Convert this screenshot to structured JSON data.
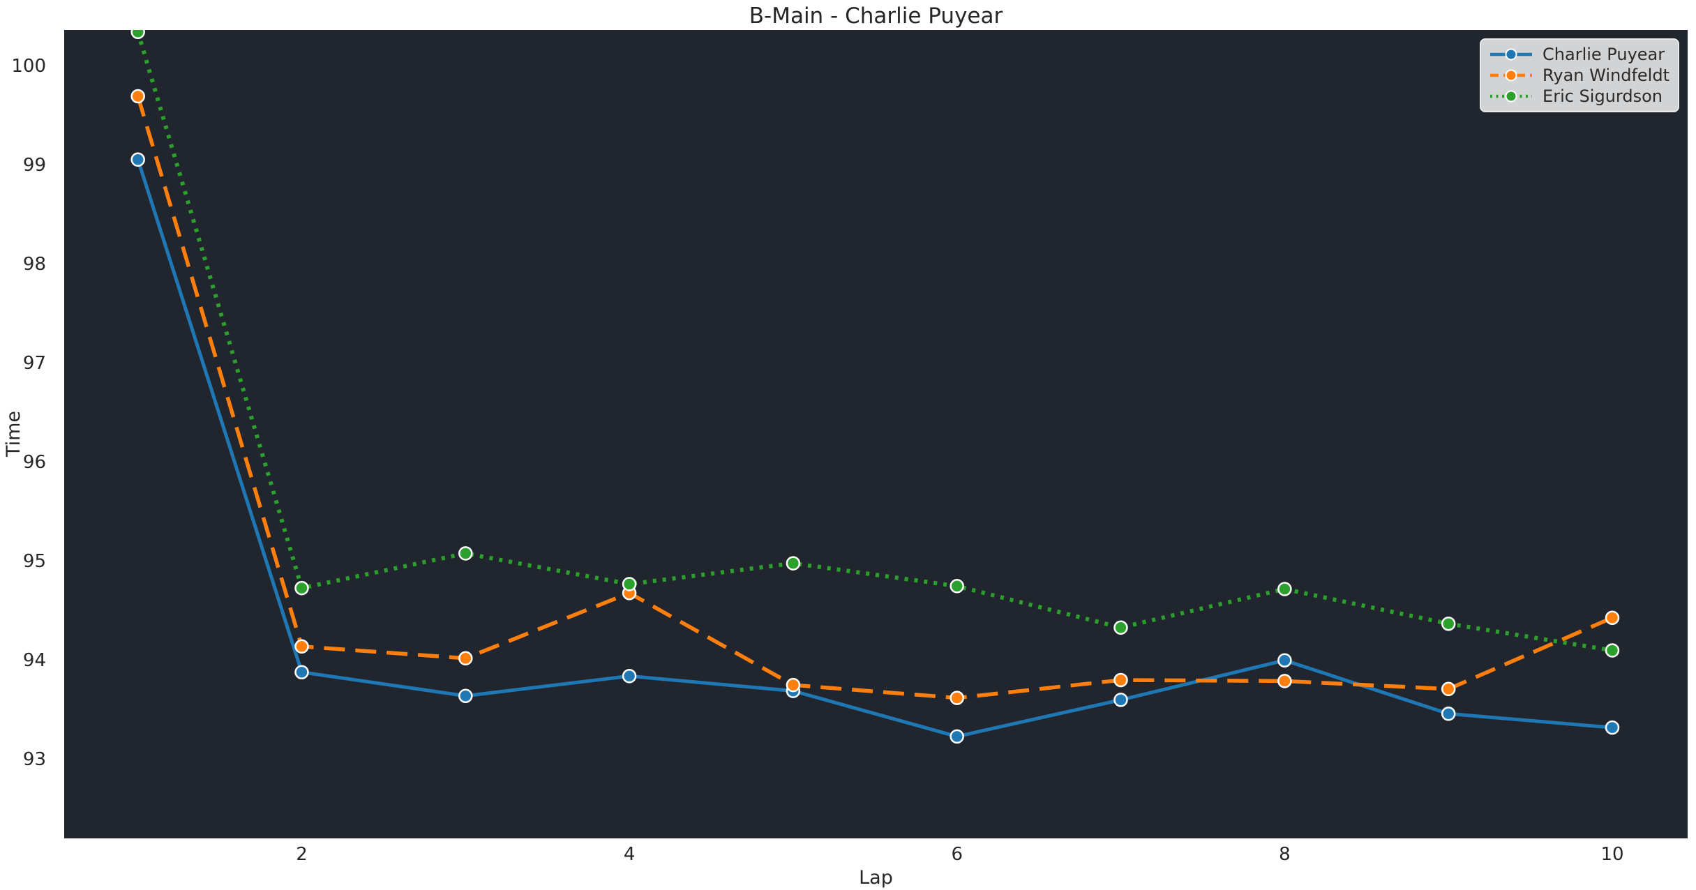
{
  "title": "B-Main - Charlie Puyear",
  "axes": {
    "xlabel": "Lap",
    "ylabel": "Time"
  },
  "legend": {
    "position": "upper right",
    "entries": [
      "Charlie Puyear",
      "Ryan Windfeldt",
      "Eric Sigurdson"
    ]
  },
  "colors": {
    "figure_bg": "#ffffff",
    "plot_bg": "#21262e",
    "text": "#262626",
    "marker_edge": "#ffffff",
    "series_blue": "#1f77b4",
    "series_orange": "#ff7f0e",
    "series_green": "#2ca02c"
  },
  "chart_data": {
    "type": "line",
    "title": "B-Main - Charlie Puyear",
    "xlabel": "Lap",
    "ylabel": "Time",
    "x": [
      1,
      2,
      3,
      4,
      5,
      6,
      7,
      8,
      9,
      10
    ],
    "series": [
      {
        "name": "Charlie Puyear",
        "color": "#1f77b4",
        "linestyle": "solid",
        "marker": "circle",
        "values": [
          99.06,
          93.88,
          93.64,
          93.84,
          93.69,
          93.23,
          93.6,
          94.0,
          93.46,
          93.32
        ]
      },
      {
        "name": "Ryan Windfeldt",
        "color": "#ff7f0e",
        "linestyle": "dashed",
        "marker": "circle",
        "values": [
          99.7,
          94.14,
          94.02,
          94.68,
          93.75,
          93.62,
          93.8,
          93.79,
          93.71,
          94.43
        ]
      },
      {
        "name": "Eric Sigurdson",
        "color": "#2ca02c",
        "linestyle": "dotted",
        "marker": "circle",
        "values": [
          100.35,
          94.73,
          95.08,
          94.77,
          94.98,
          94.75,
          94.33,
          94.72,
          94.37,
          94.1
        ]
      }
    ],
    "xticks": [
      2,
      4,
      6,
      8,
      10
    ],
    "yticks": [
      93,
      94,
      95,
      96,
      97,
      98,
      99,
      100
    ],
    "xlim": [
      0.55,
      10.46
    ],
    "ylim": [
      92.2,
      100.37
    ],
    "grid": false,
    "legend_position": "upper right"
  }
}
